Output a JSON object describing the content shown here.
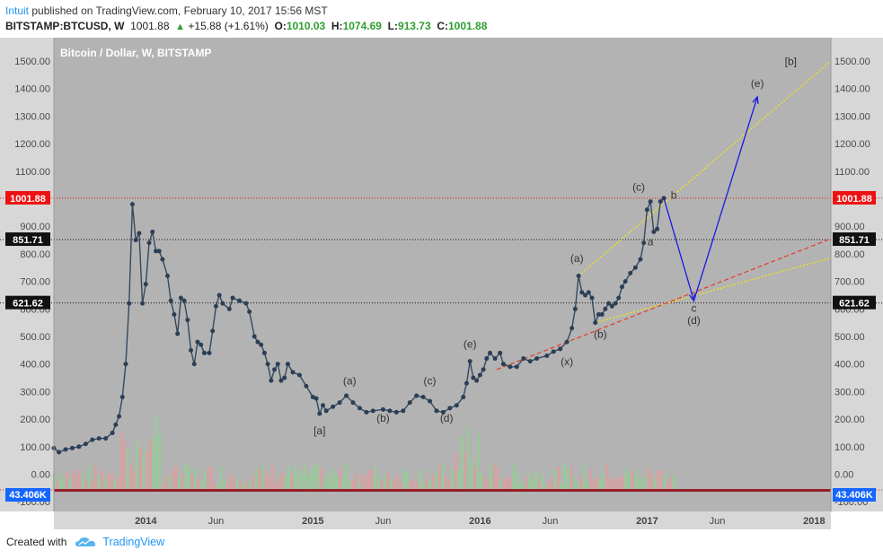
{
  "header": {
    "user": "Intuit",
    "published_text": "published on TradingView.com, February 10, 2017 15:56 MST"
  },
  "symbol_bar": {
    "symbol": "BITSTAMP:BTCUSD, W",
    "last": "1001.88",
    "change": "+15.88 (+1.61%)",
    "open_label": "O:",
    "open": "1010.03",
    "high_label": "H:",
    "high": "1074.69",
    "low_label": "L:",
    "low": "913.73",
    "close_label": "C:",
    "close": "1001.88"
  },
  "footer": {
    "created_with": "Created with",
    "brand": "TradingView"
  },
  "colors": {
    "plot_bg": "#b3b3b3",
    "line": "#34495e",
    "marker": "#2c3e55",
    "red_line": "#ee1111",
    "black_line": "#111111",
    "yellow": "#f5e60f",
    "blue": "#1a1adf",
    "red_dashed": "#e8392a",
    "vol_up": "#8fd18f",
    "vol_down": "#e59a9a"
  },
  "chart_data": {
    "type": "line",
    "title": "Bitcoin / Dollar, W, BITSTAMP",
    "y_ticks": [
      "1500.00",
      "1400.00",
      "1300.00",
      "1200.00",
      "1100.00",
      "1000.00",
      "900.00",
      "800.00",
      "700.00",
      "600.00",
      "500.00",
      "400.00",
      "300.00",
      "200.00",
      "100.00",
      "0.00",
      "-100.00"
    ],
    "ylim": [
      -100,
      1500
    ],
    "x_ticks": [
      {
        "label": "2014",
        "t": 2014.0,
        "bold": true
      },
      {
        "label": "Jun",
        "t": 2014.42,
        "bold": false
      },
      {
        "label": "2015",
        "t": 2015.0,
        "bold": true
      },
      {
        "label": "Jun",
        "t": 2015.42,
        "bold": false
      },
      {
        "label": "2016",
        "t": 2016.0,
        "bold": true
      },
      {
        "label": "Jun",
        "t": 2016.42,
        "bold": false
      },
      {
        "label": "2017",
        "t": 2017.0,
        "bold": true
      },
      {
        "label": "Jun",
        "t": 2017.42,
        "bold": false
      },
      {
        "label": "2018",
        "t": 2018.0,
        "bold": true
      }
    ],
    "xlim": [
      2013.45,
      2018.1
    ],
    "price_levels": [
      {
        "label": "1001.88",
        "value": 1001.88,
        "kind": "last"
      },
      {
        "label": "851.71",
        "value": 851.71,
        "kind": "level"
      },
      {
        "label": "621.62",
        "value": 621.62,
        "kind": "level"
      }
    ],
    "volume_label": "43.406K",
    "series": [
      {
        "name": "BTCUSD weekly close",
        "points": [
          [
            2013.45,
            95
          ],
          [
            2013.48,
            80
          ],
          [
            2013.52,
            90
          ],
          [
            2013.56,
            95
          ],
          [
            2013.6,
            100
          ],
          [
            2013.64,
            110
          ],
          [
            2013.68,
            125
          ],
          [
            2013.72,
            130
          ],
          [
            2013.76,
            130
          ],
          [
            2013.8,
            150
          ],
          [
            2013.82,
            180
          ],
          [
            2013.84,
            210
          ],
          [
            2013.86,
            280
          ],
          [
            2013.88,
            400
          ],
          [
            2013.9,
            620
          ],
          [
            2013.92,
            980
          ],
          [
            2013.94,
            850
          ],
          [
            2013.96,
            875
          ],
          [
            2013.98,
            620
          ],
          [
            2014.0,
            690
          ],
          [
            2014.02,
            840
          ],
          [
            2014.04,
            880
          ],
          [
            2014.06,
            810
          ],
          [
            2014.08,
            810
          ],
          [
            2014.1,
            780
          ],
          [
            2014.13,
            720
          ],
          [
            2014.15,
            630
          ],
          [
            2014.17,
            580
          ],
          [
            2014.19,
            510
          ],
          [
            2014.21,
            640
          ],
          [
            2014.23,
            630
          ],
          [
            2014.25,
            560
          ],
          [
            2014.27,
            450
          ],
          [
            2014.29,
            400
          ],
          [
            2014.31,
            480
          ],
          [
            2014.33,
            470
          ],
          [
            2014.35,
            440
          ],
          [
            2014.38,
            440
          ],
          [
            2014.4,
            520
          ],
          [
            2014.42,
            610
          ],
          [
            2014.44,
            650
          ],
          [
            2014.46,
            620
          ],
          [
            2014.5,
            600
          ],
          [
            2014.52,
            640
          ],
          [
            2014.56,
            630
          ],
          [
            2014.6,
            620
          ],
          [
            2014.62,
            590
          ],
          [
            2014.65,
            500
          ],
          [
            2014.67,
            480
          ],
          [
            2014.69,
            470
          ],
          [
            2014.71,
            440
          ],
          [
            2014.73,
            400
          ],
          [
            2014.75,
            340
          ],
          [
            2014.77,
            380
          ],
          [
            2014.79,
            400
          ],
          [
            2014.81,
            340
          ],
          [
            2014.83,
            350
          ],
          [
            2014.85,
            400
          ],
          [
            2014.88,
            370
          ],
          [
            2014.92,
            360
          ],
          [
            2014.96,
            320
          ],
          [
            2015.0,
            280
          ],
          [
            2015.02,
            275
          ],
          [
            2015.04,
            220
          ],
          [
            2015.06,
            250
          ],
          [
            2015.08,
            230
          ],
          [
            2015.12,
            245
          ],
          [
            2015.16,
            260
          ],
          [
            2015.2,
            285
          ],
          [
            2015.24,
            260
          ],
          [
            2015.28,
            240
          ],
          [
            2015.32,
            225
          ],
          [
            2015.36,
            230
          ],
          [
            2015.42,
            235
          ],
          [
            2015.46,
            230
          ],
          [
            2015.5,
            225
          ],
          [
            2015.54,
            230
          ],
          [
            2015.58,
            260
          ],
          [
            2015.62,
            285
          ],
          [
            2015.66,
            280
          ],
          [
            2015.7,
            265
          ],
          [
            2015.74,
            230
          ],
          [
            2015.78,
            225
          ],
          [
            2015.82,
            240
          ],
          [
            2015.86,
            250
          ],
          [
            2015.9,
            280
          ],
          [
            2015.92,
            330
          ],
          [
            2015.94,
            410
          ],
          [
            2015.96,
            350
          ],
          [
            2015.98,
            340
          ],
          [
            2016.0,
            360
          ],
          [
            2016.02,
            380
          ],
          [
            2016.04,
            420
          ],
          [
            2016.06,
            440
          ],
          [
            2016.09,
            420
          ],
          [
            2016.12,
            440
          ],
          [
            2016.14,
            400
          ],
          [
            2016.18,
            390
          ],
          [
            2016.22,
            390
          ],
          [
            2016.26,
            420
          ],
          [
            2016.3,
            410
          ],
          [
            2016.34,
            420
          ],
          [
            2016.4,
            430
          ],
          [
            2016.44,
            445
          ],
          [
            2016.48,
            455
          ],
          [
            2016.52,
            480
          ],
          [
            2016.55,
            530
          ],
          [
            2016.57,
            600
          ],
          [
            2016.59,
            720
          ],
          [
            2016.61,
            660
          ],
          [
            2016.63,
            650
          ],
          [
            2016.65,
            660
          ],
          [
            2016.67,
            640
          ],
          [
            2016.69,
            550
          ],
          [
            2016.71,
            580
          ],
          [
            2016.73,
            580
          ],
          [
            2016.75,
            600
          ],
          [
            2016.77,
            620
          ],
          [
            2016.79,
            610
          ],
          [
            2016.81,
            620
          ],
          [
            2016.83,
            640
          ],
          [
            2016.85,
            680
          ],
          [
            2016.87,
            700
          ],
          [
            2016.9,
            730
          ],
          [
            2016.93,
            750
          ],
          [
            2016.96,
            780
          ],
          [
            2016.98,
            840
          ],
          [
            2017.0,
            960
          ],
          [
            2017.02,
            990
          ],
          [
            2017.04,
            880
          ],
          [
            2017.06,
            890
          ],
          [
            2017.08,
            990
          ],
          [
            2017.1,
            1002
          ]
        ]
      }
    ],
    "annotations": [
      {
        "text": "[a]",
        "t": 2015.04,
        "v": 145
      },
      {
        "text": "(a)",
        "t": 2015.22,
        "v": 325
      },
      {
        "text": "(b)",
        "t": 2015.42,
        "v": 190
      },
      {
        "text": "(c)",
        "t": 2015.7,
        "v": 325
      },
      {
        "text": "(d)",
        "t": 2015.8,
        "v": 190
      },
      {
        "text": "(e)",
        "t": 2015.94,
        "v": 460
      },
      {
        "text": "(x)",
        "t": 2016.52,
        "v": 395
      },
      {
        "text": "(a)",
        "t": 2016.58,
        "v": 770
      },
      {
        "text": "(b)",
        "t": 2016.72,
        "v": 495
      },
      {
        "text": "(c)",
        "t": 2016.95,
        "v": 1030
      },
      {
        "text": "b",
        "t": 2017.16,
        "v": 1000
      },
      {
        "text": "a",
        "t": 2017.02,
        "v": 830
      },
      {
        "text": "c",
        "t": 2017.28,
        "v": 590
      },
      {
        "text": "(d)",
        "t": 2017.28,
        "v": 545
      },
      {
        "text": "(e)",
        "t": 2017.66,
        "v": 1405
      },
      {
        "text": "[b]",
        "t": 2017.86,
        "v": 1485
      }
    ]
  }
}
